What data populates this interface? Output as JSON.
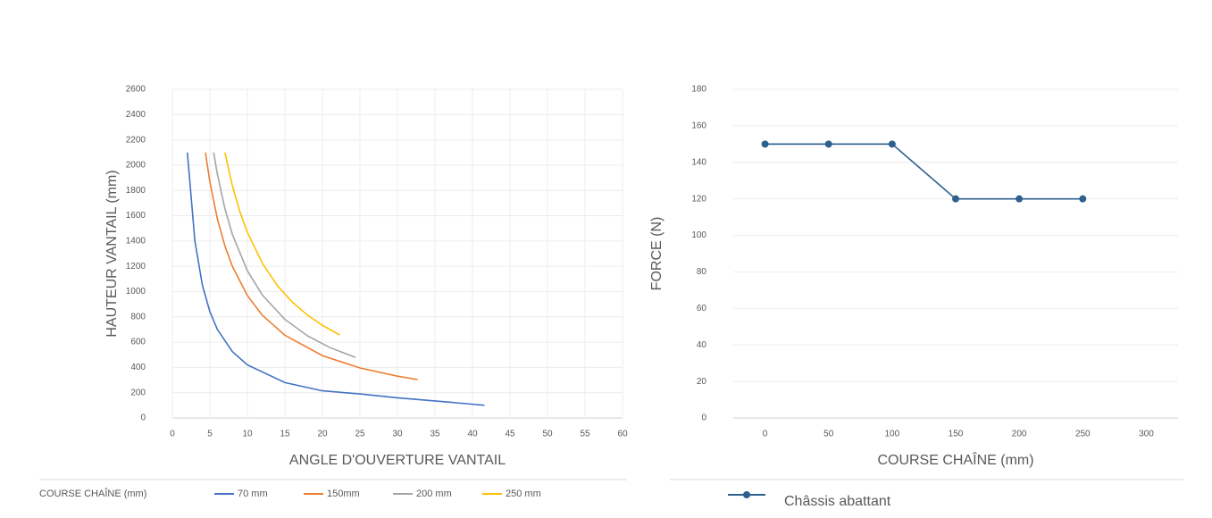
{
  "chart_data": [
    {
      "type": "line",
      "x_label": "ANGLE D'OUVERTURE VANTAIL",
      "y_label": "HAUTEUR VANTAIL (mm)",
      "legend_title": "COURSE CHAÎNE (mm)",
      "xlim": [
        0,
        60
      ],
      "xticks": [
        0,
        5,
        10,
        15,
        20,
        25,
        30,
        35,
        40,
        45,
        50,
        55,
        60
      ],
      "ylim": [
        0,
        2600
      ],
      "yticks": [
        0,
        200,
        400,
        600,
        800,
        1000,
        1200,
        1400,
        1600,
        1800,
        2000,
        2200,
        2400,
        2600
      ],
      "grid": true,
      "series": [
        {
          "name": "70 mm",
          "color": "#4472c4",
          "x": [
            2,
            3,
            4,
            5,
            6,
            8,
            10,
            15,
            20,
            25,
            30,
            35,
            41.6
          ],
          "values": [
            2100,
            1400,
            1050,
            840,
            700,
            525,
            420,
            280,
            215,
            190,
            160,
            135,
            100
          ]
        },
        {
          "name": "150mm",
          "color": "#ed7d31",
          "x": [
            4.4,
            5,
            6,
            7,
            8,
            10,
            12,
            15,
            20,
            25,
            30,
            32.7
          ],
          "values": [
            2100,
            1866,
            1574,
            1361,
            1199,
            968,
            812,
            654,
            493,
            396,
            331,
            304
          ]
        },
        {
          "name": "200 mm",
          "color": "#a5a5a5",
          "x": [
            5.5,
            6,
            7,
            8,
            10,
            12,
            15,
            18,
            21,
            24.4
          ],
          "values": [
            2100,
            1928,
            1656,
            1452,
            1164,
            972,
            779,
            650,
            557,
            480
          ]
        },
        {
          "name": "250 mm",
          "color": "#ffc000",
          "x": [
            7,
            8,
            9,
            10,
            12,
            14,
            16,
            18,
            20,
            22.3
          ],
          "values": [
            2100,
            1836,
            1632,
            1468,
            1223,
            1047,
            916,
            814,
            733,
            657
          ]
        }
      ]
    },
    {
      "type": "line",
      "x_label": "COURSE CHAÎNE (mm)",
      "y_label": "FORCE (N)",
      "categories": [
        "0",
        "50",
        "100",
        "150",
        "200",
        "250",
        "300"
      ],
      "ylim": [
        0,
        180
      ],
      "yticks": [
        0,
        20,
        40,
        60,
        80,
        100,
        120,
        140,
        160,
        180
      ],
      "grid": true,
      "series": [
        {
          "name": "Châssis abattant",
          "color": "#2e5f8f",
          "values": [
            150,
            150,
            150,
            120,
            120,
            120,
            null
          ]
        }
      ]
    }
  ]
}
